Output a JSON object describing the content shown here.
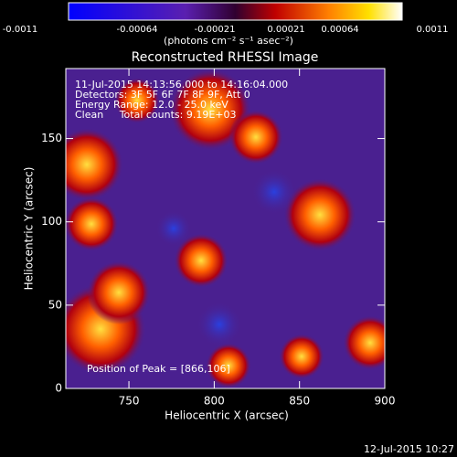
{
  "chart_data": {
    "type": "image",
    "title": "Reconstructed RHESSI Image",
    "colorbar": {
      "label": "(photons cm⁻² s⁻¹ asec⁻²)",
      "ticks": [
        -0.0011,
        -0.00064,
        -0.00021,
        0.00021,
        0.00064,
        0.0011
      ]
    },
    "annotations": [
      "11-Jul-2015 14:13:56.000 to 14:16:04.000",
      "Detectors: 3F 5F 6F 7F 8F 9F, Att 0",
      "Energy Range: 12.0 - 25.0 keV",
      "Clean     Total counts: 9.19E+03"
    ],
    "peak_label": "Position of Peak = [866,106]",
    "xlabel": "Heliocentric X (arcsec)",
    "ylabel": "Heliocentric Y (arcsec)",
    "xlim": [
      713,
      900
    ],
    "xticks": [
      750,
      800,
      850,
      900
    ],
    "ylim": [
      0,
      192
    ],
    "yticks": [
      0,
      50,
      100,
      150
    ],
    "timestamp": "12-Jul-2015 10:27"
  }
}
